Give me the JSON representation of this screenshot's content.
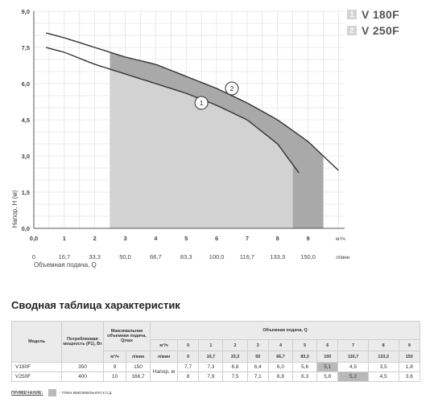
{
  "legend": [
    {
      "num": "1",
      "label": "V 180F"
    },
    {
      "num": "2",
      "label": "V 250F"
    }
  ],
  "chart_data": {
    "type": "line",
    "ylabel": "Напор, Н (м)",
    "xlabel": "Объемная подача, Q",
    "x_unit_top": "м³/ч",
    "x_unit_bottom": "л/мин",
    "x_ticks_top": [
      "0,0",
      "1",
      "2",
      "3",
      "4",
      "5",
      "6",
      "7",
      "8",
      "9"
    ],
    "x_ticks_bottom": [
      "0",
      "16,7",
      "33,3",
      "50,0",
      "66,7",
      "83,3",
      "100,0",
      "116,7",
      "133,3",
      "150,0"
    ],
    "y_ticks": [
      "0,0",
      "1,5",
      "3,0",
      "4,5",
      "6,0",
      "7,5",
      "9,0"
    ],
    "xlim": [
      0,
      10.2
    ],
    "ylim": [
      0,
      9
    ],
    "grid": true,
    "series": [
      {
        "name": "V 180F",
        "label": "1",
        "x": [
          0.4,
          1,
          2,
          3,
          4,
          5,
          6,
          7,
          8,
          8.7
        ],
        "y": [
          7.5,
          7.3,
          6.8,
          6.4,
          6.0,
          5.6,
          5.1,
          4.5,
          3.5,
          2.3
        ]
      },
      {
        "name": "V 250F",
        "label": "2",
        "x": [
          0.4,
          1,
          2,
          3,
          4,
          5,
          6,
          7,
          8,
          9,
          10
        ],
        "y": [
          8.1,
          7.9,
          7.5,
          7.1,
          6.8,
          6.3,
          5.8,
          5.2,
          4.5,
          3.6,
          2.4
        ]
      }
    ],
    "shaded_ranges": [
      [
        2.5,
        8.5
      ],
      [
        8.5,
        9.5
      ]
    ],
    "curve_labels": [
      {
        "text": "1",
        "x": 5.5,
        "y": 5.2
      },
      {
        "text": "2",
        "x": 6.5,
        "y": 5.8
      }
    ]
  },
  "summary": {
    "title": "Сводная таблица характеристик",
    "headers": {
      "model": "Модель",
      "power": "Потребляемая мощность (P1), Вт",
      "max_flow": "Максимальная объемная подача, Qmax",
      "flow": "Объемная подача, Q",
      "m3h": "м³/ч",
      "lmin": "л/мин",
      "head": "Напор, м"
    },
    "q_m3h": [
      "0",
      "1",
      "2",
      "3",
      "4",
      "5",
      "6",
      "7",
      "8",
      "9"
    ],
    "q_lmin": [
      "0",
      "16,7",
      "33,3",
      "50",
      "66,7",
      "83,3",
      "100",
      "116,7",
      "133,3",
      "150"
    ],
    "rows": [
      {
        "model": "V180F",
        "power": "350",
        "qmax_m3h": "9",
        "qmax_lmin": "150",
        "heads": [
          "7,7",
          "7,3",
          "6,8",
          "6,4",
          "6,0",
          "5,6",
          "5,1",
          "4,5",
          "3,5",
          "1,8"
        ]
      },
      {
        "model": "V250F",
        "power": "400",
        "qmax_m3h": "10",
        "qmax_lmin": "166,7",
        "heads": [
          "8",
          "7,9",
          "7,5",
          "7,1",
          "6,8",
          "6,3",
          "5,8",
          "5,2",
          "4,5",
          "3,6"
        ]
      }
    ]
  },
  "note": {
    "label": "ПРИМЕЧАНИЕ:",
    "text": "- точка максимального к.п.д."
  },
  "colors": {
    "shade_light": "#d2d2d2",
    "shade_dark": "#a9a9a9",
    "highlight": "#b9b9b9",
    "grid": "#d9d9d9"
  }
}
